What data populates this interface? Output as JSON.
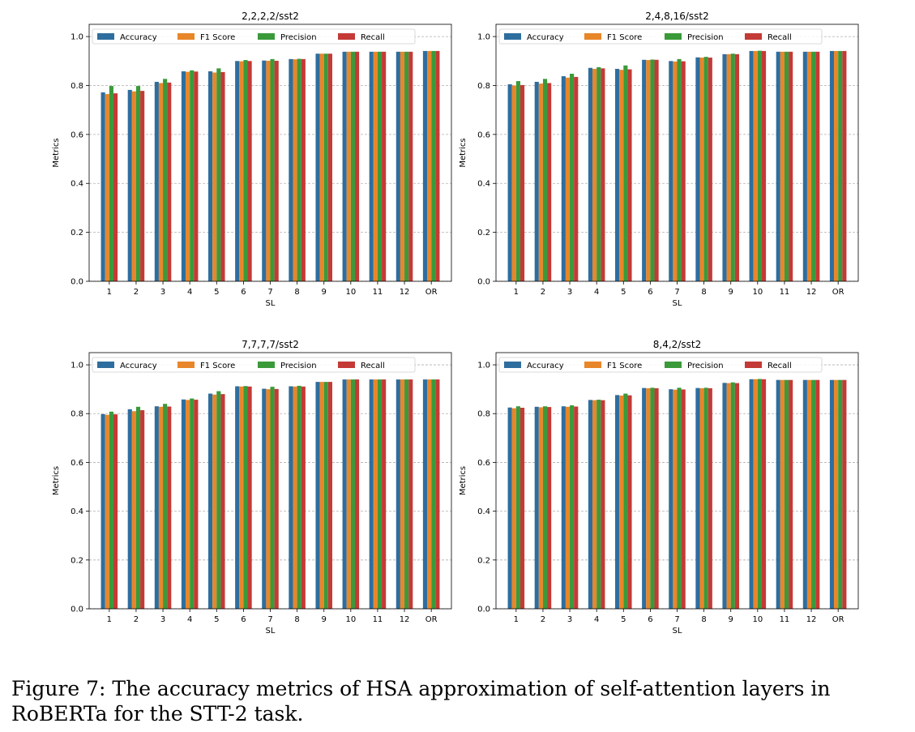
{
  "figure": {
    "caption": "Figure 7: The accuracy metrics of HSA approximation of self-attention layers in RoBERTa for the STT-2 task."
  },
  "chart_data": [
    {
      "type": "bar",
      "title": "2,2,2,2/sst2",
      "xlabel": "SL",
      "ylabel": "Metrics",
      "ylim": [
        0,
        1.05
      ],
      "yticks": [
        0.0,
        0.2,
        0.4,
        0.6,
        0.8,
        1.0
      ],
      "grid": "y-dashed",
      "legend_placement": "top",
      "categories": [
        "1",
        "2",
        "3",
        "4",
        "5",
        "6",
        "7",
        "8",
        "9",
        "10",
        "11",
        "12",
        "OR"
      ],
      "series": [
        {
          "name": "Accuracy",
          "color": "#2e6e9e",
          "values": [
            0.772,
            0.782,
            0.815,
            0.858,
            0.858,
            0.9,
            0.902,
            0.908,
            0.93,
            0.938,
            0.938,
            0.938,
            0.941
          ]
        },
        {
          "name": "F1 Score",
          "color": "#e8862a",
          "values": [
            0.765,
            0.776,
            0.81,
            0.856,
            0.853,
            0.899,
            0.901,
            0.907,
            0.93,
            0.938,
            0.938,
            0.938,
            0.941
          ]
        },
        {
          "name": "Precision",
          "color": "#3a9a3a",
          "values": [
            0.798,
            0.798,
            0.827,
            0.862,
            0.87,
            0.904,
            0.908,
            0.909,
            0.93,
            0.938,
            0.938,
            0.938,
            0.941
          ]
        },
        {
          "name": "Recall",
          "color": "#c43a36",
          "values": [
            0.768,
            0.778,
            0.812,
            0.857,
            0.855,
            0.9,
            0.901,
            0.908,
            0.93,
            0.938,
            0.938,
            0.938,
            0.941
          ]
        }
      ]
    },
    {
      "type": "bar",
      "title": "2,4,8,16/sst2",
      "xlabel": "SL",
      "ylabel": "Metrics",
      "ylim": [
        0,
        1.05
      ],
      "yticks": [
        0.0,
        0.2,
        0.4,
        0.6,
        0.8,
        1.0
      ],
      "grid": "y-dashed",
      "legend_placement": "top",
      "categories": [
        "1",
        "2",
        "3",
        "4",
        "5",
        "6",
        "7",
        "8",
        "9",
        "10",
        "11",
        "12",
        "OR"
      ],
      "series": [
        {
          "name": "Accuracy",
          "color": "#2e6e9e",
          "values": [
            0.805,
            0.815,
            0.838,
            0.872,
            0.868,
            0.905,
            0.9,
            0.915,
            0.928,
            0.941,
            0.938,
            0.938,
            0.941
          ]
        },
        {
          "name": "F1 Score",
          "color": "#e8862a",
          "values": [
            0.8,
            0.808,
            0.832,
            0.868,
            0.864,
            0.904,
            0.898,
            0.914,
            0.928,
            0.941,
            0.938,
            0.938,
            0.941
          ]
        },
        {
          "name": "Precision",
          "color": "#3a9a3a",
          "values": [
            0.818,
            0.827,
            0.848,
            0.875,
            0.882,
            0.906,
            0.908,
            0.917,
            0.93,
            0.942,
            0.938,
            0.938,
            0.941
          ]
        },
        {
          "name": "Recall",
          "color": "#c43a36",
          "values": [
            0.802,
            0.81,
            0.835,
            0.87,
            0.866,
            0.905,
            0.899,
            0.914,
            0.928,
            0.941,
            0.938,
            0.938,
            0.941
          ]
        }
      ]
    },
    {
      "type": "bar",
      "title": "7,7,7,7/sst2",
      "xlabel": "SL",
      "ylabel": "Metrics",
      "ylim": [
        0,
        1.05
      ],
      "yticks": [
        0.0,
        0.2,
        0.4,
        0.6,
        0.8,
        1.0
      ],
      "grid": "y-dashed",
      "legend_placement": "top",
      "categories": [
        "1",
        "2",
        "3",
        "4",
        "5",
        "6",
        "7",
        "8",
        "9",
        "10",
        "11",
        "12",
        "OR"
      ],
      "series": [
        {
          "name": "Accuracy",
          "color": "#2e6e9e",
          "values": [
            0.798,
            0.818,
            0.83,
            0.858,
            0.882,
            0.912,
            0.902,
            0.912,
            0.93,
            0.94,
            0.94,
            0.94,
            0.94
          ]
        },
        {
          "name": "F1 Score",
          "color": "#e8862a",
          "values": [
            0.795,
            0.81,
            0.828,
            0.856,
            0.878,
            0.911,
            0.9,
            0.911,
            0.93,
            0.94,
            0.94,
            0.94,
            0.94
          ]
        },
        {
          "name": "Precision",
          "color": "#3a9a3a",
          "values": [
            0.808,
            0.828,
            0.84,
            0.862,
            0.892,
            0.913,
            0.91,
            0.914,
            0.93,
            0.94,
            0.94,
            0.94,
            0.94
          ]
        },
        {
          "name": "Recall",
          "color": "#c43a36",
          "values": [
            0.797,
            0.814,
            0.829,
            0.857,
            0.88,
            0.911,
            0.901,
            0.911,
            0.93,
            0.94,
            0.94,
            0.94,
            0.94
          ]
        }
      ]
    },
    {
      "type": "bar",
      "title": "8,4,2/sst2",
      "xlabel": "SL",
      "ylabel": "Metrics",
      "ylim": [
        0,
        1.05
      ],
      "yticks": [
        0.0,
        0.2,
        0.4,
        0.6,
        0.8,
        1.0
      ],
      "grid": "y-dashed",
      "legend_placement": "top",
      "categories": [
        "1",
        "2",
        "3",
        "4",
        "5",
        "6",
        "7",
        "8",
        "9",
        "10",
        "11",
        "12",
        "OR"
      ],
      "series": [
        {
          "name": "Accuracy",
          "color": "#2e6e9e",
          "values": [
            0.825,
            0.828,
            0.83,
            0.856,
            0.876,
            0.905,
            0.9,
            0.905,
            0.926,
            0.941,
            0.938,
            0.938,
            0.938
          ]
        },
        {
          "name": "F1 Score",
          "color": "#e8862a",
          "values": [
            0.822,
            0.826,
            0.828,
            0.855,
            0.874,
            0.904,
            0.898,
            0.904,
            0.925,
            0.941,
            0.938,
            0.938,
            0.938
          ]
        },
        {
          "name": "Precision",
          "color": "#3a9a3a",
          "values": [
            0.83,
            0.83,
            0.834,
            0.857,
            0.882,
            0.906,
            0.906,
            0.906,
            0.928,
            0.942,
            0.938,
            0.938,
            0.938
          ]
        },
        {
          "name": "Recall",
          "color": "#c43a36",
          "values": [
            0.824,
            0.827,
            0.829,
            0.855,
            0.875,
            0.904,
            0.899,
            0.904,
            0.925,
            0.941,
            0.938,
            0.938,
            0.938
          ]
        }
      ]
    }
  ]
}
